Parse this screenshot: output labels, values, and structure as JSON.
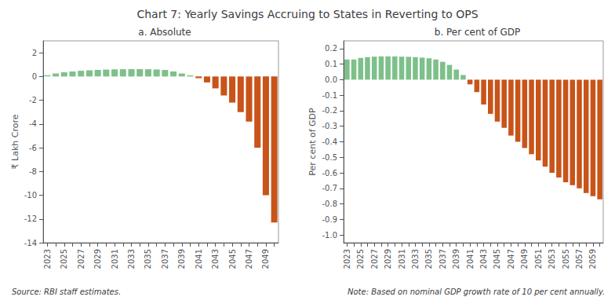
{
  "chart_data": [
    {
      "type": "bar",
      "title": "Chart 7: Yearly Savings Accruing to States in Reverting to OPS",
      "subtitle": "a. Absolute",
      "ylabel": "₹ Lakh Crore",
      "annotations": [
        "Source: RBI staff estimates."
      ],
      "categories": [
        "2023",
        null,
        "2025",
        null,
        "2027",
        null,
        "2029",
        null,
        "2031",
        null,
        "2033",
        null,
        "2035",
        null,
        "2037",
        null,
        "2039",
        null,
        "2041",
        null,
        "2043",
        null,
        "2045",
        null,
        "2047",
        null,
        "2049",
        null
      ],
      "values": [
        0.1,
        0.25,
        0.35,
        0.42,
        0.48,
        0.52,
        0.56,
        0.58,
        0.6,
        0.61,
        0.62,
        0.62,
        0.61,
        0.59,
        0.55,
        0.42,
        0.25,
        0.1,
        -0.15,
        -0.5,
        -1.0,
        -1.6,
        -2.2,
        -3.0,
        -3.8,
        -6.0,
        -10.0,
        -12.3
      ],
      "colors": [
        "#7DC08A",
        "#7DC08A",
        "#7DC08A",
        "#7DC08A",
        "#7DC08A",
        "#7DC08A",
        "#7DC08A",
        "#7DC08A",
        "#7DC08A",
        "#7DC08A",
        "#7DC08A",
        "#7DC08A",
        "#7DC08A",
        "#7DC08A",
        "#7DC08A",
        "#7DC08A",
        "#7DC08A",
        "#7DC08A",
        "#C8541A",
        "#C8541A",
        "#C8541A",
        "#C8541A",
        "#C8541A",
        "#C8541A",
        "#C8541A",
        "#C8541A",
        "#C8541A",
        "#C8541A"
      ],
      "ylim": [
        -14,
        3.0
      ],
      "yticks": [
        -14,
        -12,
        -10,
        -8,
        -6,
        -4,
        -2,
        0,
        2
      ],
      "grid": false
    },
    {
      "type": "bar",
      "subtitle": "b. Per cent of GDP",
      "ylabel": "Per cent of GDP",
      "annotations": [
        "Note: Based on nominal GDP growth rate of 10 per cent annually."
      ],
      "categories": [
        "2023",
        null,
        "2025",
        null,
        "2027",
        null,
        "2029",
        null,
        "2031",
        null,
        "2033",
        null,
        "2035",
        null,
        "2037",
        null,
        "2039",
        null,
        "2041",
        null,
        "2043",
        null,
        "2045",
        null,
        "2047",
        null,
        "2049",
        null,
        "2051",
        null,
        "2053",
        null,
        "2055",
        null,
        "2057",
        null,
        "2059",
        null
      ],
      "values": [
        0.13,
        0.13,
        0.14,
        0.145,
        0.148,
        0.15,
        0.15,
        0.15,
        0.148,
        0.147,
        0.145,
        0.142,
        0.138,
        0.13,
        0.115,
        0.095,
        0.065,
        0.03,
        -0.03,
        -0.08,
        -0.16,
        -0.22,
        -0.27,
        -0.31,
        -0.36,
        -0.4,
        -0.44,
        -0.48,
        -0.52,
        -0.56,
        -0.6,
        -0.63,
        -0.66,
        -0.68,
        -0.7,
        -0.73,
        -0.75,
        -0.77
      ],
      "colors": [
        "#7DC08A",
        "#7DC08A",
        "#7DC08A",
        "#7DC08A",
        "#7DC08A",
        "#7DC08A",
        "#7DC08A",
        "#7DC08A",
        "#7DC08A",
        "#7DC08A",
        "#7DC08A",
        "#7DC08A",
        "#7DC08A",
        "#7DC08A",
        "#7DC08A",
        "#7DC08A",
        "#7DC08A",
        "#7DC08A",
        "#C8541A",
        "#C8541A",
        "#C8541A",
        "#C8541A",
        "#C8541A",
        "#C8541A",
        "#C8541A",
        "#C8541A",
        "#C8541A",
        "#C8541A",
        "#C8541A",
        "#C8541A",
        "#C8541A",
        "#C8541A",
        "#C8541A",
        "#C8541A",
        "#C8541A",
        "#C8541A",
        "#C8541A",
        "#C8541A"
      ],
      "ylim": [
        -1.05,
        0.25
      ],
      "yticks": [
        {
          "value": -1.0,
          "label": "-1.0"
        },
        -0.9,
        -0.8,
        -0.7,
        -0.6,
        -0.5,
        -0.4,
        -0.3,
        -0.2,
        -0.1,
        {
          "value": 0.0,
          "label": "0.0"
        },
        0.1,
        0.2
      ],
      "grid": false
    }
  ]
}
